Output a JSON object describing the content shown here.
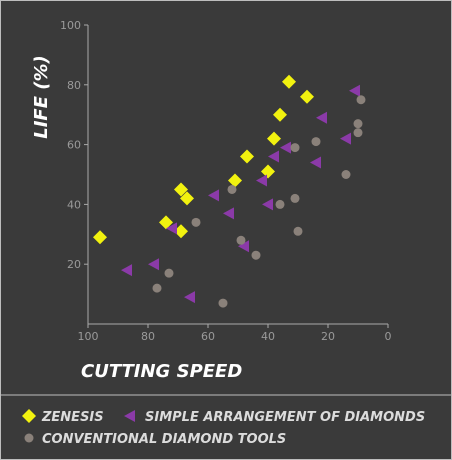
{
  "chart_data": {
    "type": "scatter",
    "xlabel": "CUTTING SPEED",
    "ylabel": "LIFE (%)",
    "xlim": [
      100,
      0
    ],
    "ylim": [
      0,
      100
    ],
    "x_reversed": true,
    "x_ticks": [
      100,
      80,
      60,
      40,
      20,
      0
    ],
    "y_ticks": [
      20,
      40,
      60,
      80,
      100
    ],
    "grid": false,
    "legend_position": "bottom",
    "series": [
      {
        "name": "ZENESIS",
        "marker": "diamond",
        "color": "#f2f20f",
        "points": [
          [
            96,
            29
          ],
          [
            74,
            34
          ],
          [
            69,
            45
          ],
          [
            67,
            42
          ],
          [
            69,
            31
          ],
          [
            51,
            48
          ],
          [
            47,
            56
          ],
          [
            40,
            51
          ],
          [
            38,
            62
          ],
          [
            36,
            70
          ],
          [
            33,
            81
          ],
          [
            27,
            76
          ]
        ]
      },
      {
        "name": "SIMPLE ARRANGEMENT OF DIAMONDS",
        "marker": "triangle-left",
        "color": "#8b3aa8",
        "points": [
          [
            87,
            18
          ],
          [
            78,
            20
          ],
          [
            72,
            32
          ],
          [
            66,
            9
          ],
          [
            58,
            43
          ],
          [
            53,
            37
          ],
          [
            48,
            26
          ],
          [
            42,
            48
          ],
          [
            40,
            40
          ],
          [
            38,
            56
          ],
          [
            34,
            59
          ],
          [
            22,
            69
          ],
          [
            24,
            54
          ],
          [
            14,
            62
          ],
          [
            11,
            78
          ]
        ]
      },
      {
        "name": "CONVENTIONAL DIAMOND TOOLS",
        "marker": "circle",
        "color": "#8a817a",
        "points": [
          [
            77,
            12
          ],
          [
            73,
            17
          ],
          [
            64,
            34
          ],
          [
            55,
            7
          ],
          [
            52,
            45
          ],
          [
            49,
            28
          ],
          [
            44,
            23
          ],
          [
            36,
            40
          ],
          [
            31,
            42
          ],
          [
            30,
            31
          ],
          [
            31,
            59
          ],
          [
            24,
            61
          ],
          [
            14,
            50
          ],
          [
            10,
            64
          ],
          [
            10,
            67
          ],
          [
            9,
            75
          ]
        ]
      }
    ]
  }
}
